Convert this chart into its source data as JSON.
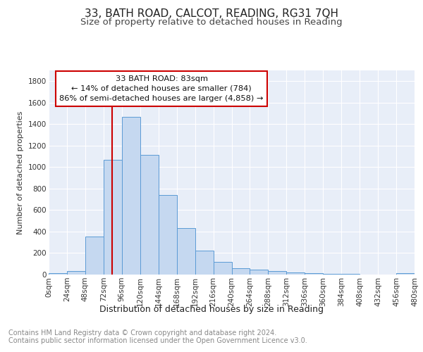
{
  "title1": "33, BATH ROAD, CALCOT, READING, RG31 7QH",
  "title2": "Size of property relative to detached houses in Reading",
  "xlabel": "Distribution of detached houses by size in Reading",
  "ylabel": "Number of detached properties",
  "bin_edges": [
    0,
    24,
    48,
    72,
    96,
    120,
    144,
    168,
    192,
    216,
    240,
    264,
    288,
    312,
    336,
    360,
    384,
    408,
    432,
    456,
    480
  ],
  "hist_values": [
    15,
    35,
    355,
    1065,
    1470,
    1115,
    740,
    435,
    225,
    115,
    60,
    48,
    30,
    22,
    15,
    8,
    5,
    3,
    2,
    15
  ],
  "bar_color": "#c5d8f0",
  "bar_edge_color": "#5b9bd5",
  "vline_x": 83,
  "vline_color": "#cc0000",
  "annotation_line1": "33 BATH ROAD: 83sqm",
  "annotation_line2": "← 14% of detached houses are smaller (784)",
  "annotation_line3": "86% of semi-detached houses are larger (4,858) →",
  "annotation_box_color": "#ffffff",
  "annotation_box_edge": "#cc0000",
  "ylim": [
    0,
    1900
  ],
  "xlim": [
    0,
    480
  ],
  "xtick_labels": [
    "0sqm",
    "24sqm",
    "48sqm",
    "72sqm",
    "96sqm",
    "120sqm",
    "144sqm",
    "168sqm",
    "192sqm",
    "216sqm",
    "240sqm",
    "264sqm",
    "288sqm",
    "312sqm",
    "336sqm",
    "360sqm",
    "384sqm",
    "408sqm",
    "432sqm",
    "456sqm",
    "480sqm"
  ],
  "xtick_positions": [
    0,
    24,
    48,
    72,
    96,
    120,
    144,
    168,
    192,
    216,
    240,
    264,
    288,
    312,
    336,
    360,
    384,
    408,
    432,
    456,
    480
  ],
  "ytick_positions": [
    0,
    200,
    400,
    600,
    800,
    1000,
    1200,
    1400,
    1600,
    1800
  ],
  "footer_text": "Contains HM Land Registry data © Crown copyright and database right 2024.\nContains public sector information licensed under the Open Government Licence v3.0.",
  "bg_color": "#ffffff",
  "plot_bg_color": "#e8eef8",
  "grid_color": "#ffffff",
  "title1_fontsize": 11,
  "title2_fontsize": 9.5,
  "xlabel_fontsize": 9,
  "ylabel_fontsize": 8,
  "tick_fontsize": 7.5,
  "footer_fontsize": 7
}
